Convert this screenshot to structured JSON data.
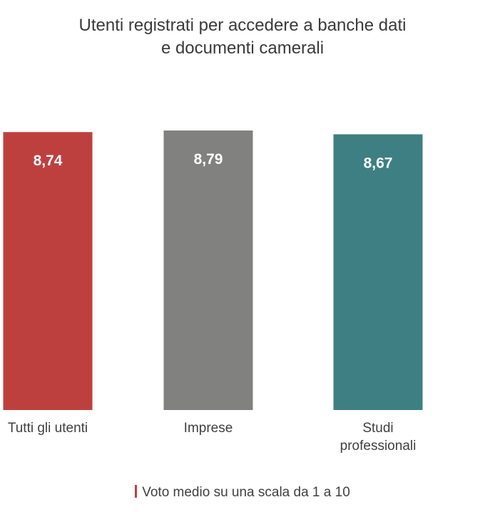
{
  "chart_data": {
    "type": "bar",
    "title_lines": [
      "Utenti registrati per accedere a banche dati",
      "e documenti camerali"
    ],
    "categories": [
      [
        "Tutti gli utenti"
      ],
      [
        "Imprese"
      ],
      [
        "Studi",
        "professionali"
      ]
    ],
    "values": [
      8.74,
      8.79,
      8.67
    ],
    "value_labels": [
      "8,74",
      "8,79",
      "8,67"
    ],
    "colors": [
      "#be403e",
      "#818280",
      "#3e7f83"
    ],
    "note": "Voto medio su una scala da 1 a 10",
    "note_color": "#c0403f",
    "legend": "bottom-center",
    "grid": false
  }
}
